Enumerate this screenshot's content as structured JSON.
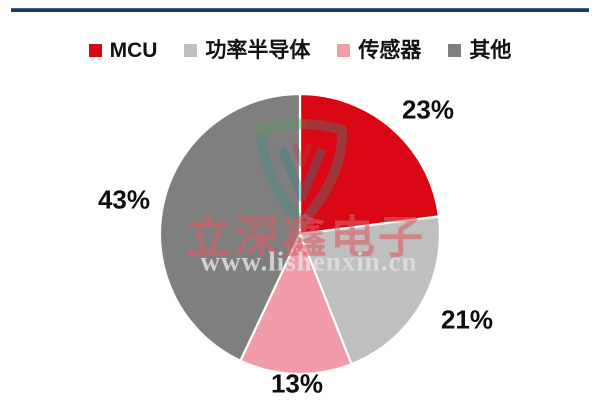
{
  "chart_data": {
    "type": "pie",
    "title": "",
    "start_angle_deg": 0,
    "direction": "clockwise",
    "legend_position": "top",
    "slices": [
      {
        "label": "MCU",
        "value": 23,
        "display": "23%",
        "color": "#d90613"
      },
      {
        "label": "功率半导体",
        "value": 21,
        "display": "21%",
        "color": "#bfbfbf"
      },
      {
        "label": "传感器",
        "value": 13,
        "display": "13%",
        "color": "#f19ca8"
      },
      {
        "label": "其他",
        "value": 43,
        "display": "43%",
        "color": "#7f7f7f"
      }
    ]
  },
  "watermark": {
    "brand": "立深鑫电子",
    "url": "www.lishenxin.cn"
  },
  "colors": {
    "top_rule": "#1f3a5e",
    "slice_divider": "#ffffff",
    "label_text": "#0d0d0d",
    "watermark_teal": "#3a8f83",
    "watermark_green": "#5a9e55",
    "watermark_red": "#b5413e"
  }
}
